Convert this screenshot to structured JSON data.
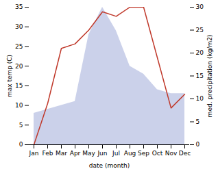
{
  "chart_data": {
    "type": "area",
    "categories": [
      "Jan",
      "Feb",
      "Mar",
      "Apr",
      "May",
      "Jun",
      "Jul",
      "Aug",
      "Sep",
      "Oct",
      "Nov",
      "Dec"
    ],
    "series": [
      {
        "type": "area",
        "color": "#c5cce8",
        "values": [
          8,
          9,
          10,
          11,
          28,
          35,
          29,
          20,
          18,
          14,
          13,
          13
        ]
      },
      {
        "type": "line",
        "color": "#c0392b",
        "axis": "y2",
        "values": [
          0,
          9,
          21,
          22,
          25,
          29,
          28,
          30,
          30,
          19,
          8,
          11
        ]
      }
    ],
    "xlabel": "date (month)",
    "ylabel": "max temp (C)",
    "y2label": "med. precipitation (kg/m2)",
    "ylim": [
      0,
      35
    ],
    "yticks": [
      0,
      5,
      10,
      15,
      20,
      25,
      30,
      35
    ],
    "y2lim": [
      0,
      30
    ],
    "y2ticks": [
      0,
      5,
      10,
      15,
      20,
      25,
      30
    ],
    "grid": false
  }
}
